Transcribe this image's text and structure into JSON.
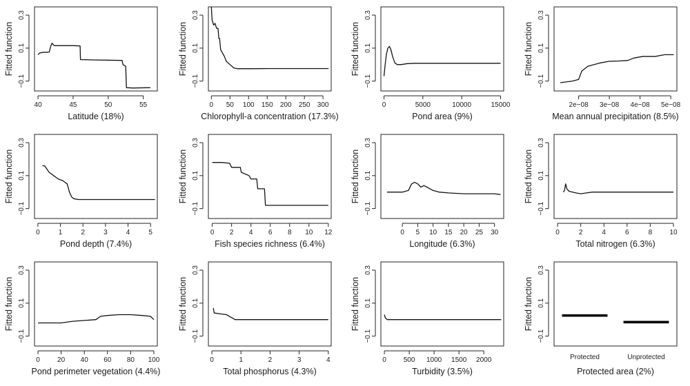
{
  "figure": {
    "ylabel": "Fitted function"
  },
  "colors": {
    "line": "#111111",
    "axis": "#222222",
    "background": "#ffffff"
  },
  "chart_data": [
    {
      "type": "line",
      "xlabel": "Latitude (18%)",
      "ylabel": "Fitted function",
      "xlim": [
        39.5,
        57
      ],
      "ylim": [
        -0.16,
        0.35
      ],
      "xticks": [
        40,
        45,
        50,
        55
      ],
      "xtick_labels": [
        "40",
        "45",
        "50",
        "55"
      ],
      "yticks": [
        -0.1,
        0.1,
        0.3
      ],
      "ytick_labels": [
        "−0.1",
        "0.1",
        "0.3"
      ],
      "x": [
        40,
        40.2,
        40.8,
        41.2,
        41.6,
        41.8,
        42.0,
        42.3,
        42.6,
        43.5,
        45.0,
        46.0,
        46.05,
        48.0,
        50.0,
        52.0,
        52.1,
        52.5,
        52.6,
        53.5,
        56.0
      ],
      "y": [
        0.06,
        0.07,
        0.075,
        0.075,
        0.076,
        0.11,
        0.13,
        0.115,
        0.115,
        0.115,
        0.115,
        0.113,
        0.03,
        0.028,
        0.027,
        0.025,
        0.0,
        -0.01,
        -0.14,
        -0.142,
        -0.14
      ]
    },
    {
      "type": "line",
      "xlabel": "Chlorophyll-a concentration (17.3%)",
      "ylabel": "Fitted function",
      "xlim": [
        -8,
        322
      ],
      "ylim": [
        -0.16,
        0.35
      ],
      "xticks": [
        0,
        50,
        100,
        150,
        200,
        250,
        300
      ],
      "xtick_labels": [
        "0",
        "50",
        "100",
        "150",
        "200",
        "250",
        "300"
      ],
      "yticks": [
        -0.1,
        0.1,
        0.3
      ],
      "ytick_labels": [
        "−0.1",
        "0.1",
        "0.3"
      ],
      "x": [
        0,
        2,
        6,
        10,
        14,
        18,
        20,
        22,
        25,
        30,
        35,
        40,
        50,
        60,
        70,
        80,
        100,
        150,
        200,
        250,
        300,
        315
      ],
      "y": [
        0.35,
        0.27,
        0.24,
        0.25,
        0.22,
        0.22,
        0.16,
        0.16,
        0.09,
        0.07,
        0.05,
        0.02,
        0.0,
        -0.02,
        -0.025,
        -0.025,
        -0.025,
        -0.024,
        -0.024,
        -0.024,
        -0.024,
        -0.024
      ]
    },
    {
      "type": "line",
      "xlabel": "Pond area (9%)",
      "ylabel": "Fitted function",
      "xlim": [
        -400,
        15400
      ],
      "ylim": [
        -0.16,
        0.35
      ],
      "xticks": [
        0,
        5000,
        10000,
        15000
      ],
      "xtick_labels": [
        "0",
        "5000",
        "10000",
        "15000"
      ],
      "yticks": [
        -0.1,
        0.1,
        0.3
      ],
      "ytick_labels": [
        "−0.1",
        "0.1",
        "0.3"
      ],
      "x": [
        0,
        150,
        300,
        500,
        700,
        900,
        1100,
        1400,
        1700,
        2200,
        3000,
        4000,
        8000,
        12000,
        15000
      ],
      "y": [
        -0.07,
        0.0,
        0.06,
        0.1,
        0.11,
        0.09,
        0.05,
        0.01,
        0.0,
        0.0,
        0.006,
        0.008,
        0.008,
        0.008,
        0.008
      ]
    },
    {
      "type": "line",
      "xlabel": "Mean annual precipitation (8.5%)",
      "ylabel": "Fitted function",
      "xlim": [
        1.2e-08,
        5.2e-08
      ],
      "ylim": [
        -0.16,
        0.35
      ],
      "xticks": [
        2e-08,
        3e-08,
        4e-08,
        5e-08
      ],
      "xtick_labels": [
        "2e−08",
        "3e−08",
        "4e−08",
        "5e−08"
      ],
      "yticks": [
        -0.1,
        0.1,
        0.3
      ],
      "ytick_labels": [
        "−0.1",
        "0.1",
        "0.3"
      ],
      "x": [
        1.4e-08,
        1.8e-08,
        2e-08,
        2.1e-08,
        2.3e-08,
        2.5e-08,
        2.7e-08,
        3e-08,
        3.3e-08,
        3.6e-08,
        3.8e-08,
        4.1e-08,
        4.5e-08,
        4.8e-08,
        5.1e-08
      ],
      "y": [
        -0.11,
        -0.1,
        -0.09,
        -0.04,
        -0.01,
        0.0,
        0.01,
        0.02,
        0.022,
        0.025,
        0.04,
        0.05,
        0.05,
        0.06,
        0.06
      ]
    },
    {
      "type": "line",
      "xlabel": "Pond depth (7.4%)",
      "ylabel": "Fitted function",
      "xlim": [
        -0.15,
        5.3
      ],
      "ylim": [
        -0.16,
        0.35
      ],
      "xticks": [
        0,
        1,
        2,
        3,
        4,
        5
      ],
      "xtick_labels": [
        "0",
        "1",
        "2",
        "3",
        "4",
        "5"
      ],
      "yticks": [
        -0.1,
        0.1,
        0.3
      ],
      "ytick_labels": [
        "−0.1",
        "0.1",
        "0.3"
      ],
      "x": [
        0.2,
        0.3,
        0.5,
        0.7,
        0.9,
        1.1,
        1.3,
        1.4,
        1.5,
        1.6,
        1.8,
        2.5,
        3.5,
        4.5,
        5.2
      ],
      "y": [
        0.16,
        0.16,
        0.12,
        0.1,
        0.08,
        0.07,
        0.05,
        0.0,
        -0.03,
        -0.04,
        -0.045,
        -0.045,
        -0.045,
        -0.045,
        -0.045
      ]
    },
    {
      "type": "line",
      "xlabel": "Fish species richness (6.4%)",
      "ylabel": "Fitted function",
      "xlim": [
        -0.4,
        12.3
      ],
      "ylim": [
        -0.16,
        0.35
      ],
      "xticks": [
        0,
        2,
        4,
        6,
        8,
        10,
        12
      ],
      "xtick_labels": [
        "0",
        "2",
        "4",
        "6",
        "8",
        "10",
        "12"
      ],
      "yticks": [
        -0.1,
        0.1,
        0.3
      ],
      "ytick_labels": [
        "−0.1",
        "0.1",
        "0.3"
      ],
      "x": [
        0,
        1,
        1.8,
        2,
        2.9,
        3,
        3.8,
        4,
        4.6,
        4.7,
        5.4,
        5.5,
        8,
        10,
        12
      ],
      "y": [
        0.18,
        0.18,
        0.175,
        0.15,
        0.15,
        0.12,
        0.1,
        0.08,
        0.08,
        0.02,
        0.02,
        -0.08,
        -0.08,
        -0.08,
        -0.08
      ]
    },
    {
      "type": "line",
      "xlabel": "Longitude (6.3%)",
      "ylabel": "Fitted function",
      "xlim": [
        -7,
        33
      ],
      "ylim": [
        -0.16,
        0.35
      ],
      "xticks": [
        0,
        5,
        10,
        15,
        20,
        25,
        30
      ],
      "xtick_labels": [
        "0",
        "5",
        "10",
        "15",
        "20",
        "25",
        "30"
      ],
      "yticks": [
        -0.1,
        0.1,
        0.3
      ],
      "ytick_labels": [
        "−0.1",
        "0.1",
        "0.3"
      ],
      "x": [
        -5,
        0,
        2,
        3,
        4,
        5,
        6,
        7,
        8,
        9,
        10,
        12,
        15,
        20,
        25,
        30,
        32
      ],
      "y": [
        0.0,
        0.0,
        0.01,
        0.05,
        0.06,
        0.05,
        0.03,
        0.04,
        0.03,
        0.02,
        0.01,
        0.0,
        -0.005,
        -0.01,
        -0.01,
        -0.01,
        -0.015
      ]
    },
    {
      "type": "line",
      "xlabel": "Total nitrogen (6.3%)",
      "ylabel": "Fitted function",
      "xlim": [
        -0.3,
        10.3
      ],
      "ylim": [
        -0.16,
        0.35
      ],
      "xticks": [
        0,
        2,
        4,
        6,
        8,
        10
      ],
      "xtick_labels": [
        "0",
        "2",
        "4",
        "6",
        "8",
        "10"
      ],
      "yticks": [
        -0.1,
        0.1,
        0.3
      ],
      "ytick_labels": [
        "−0.1",
        "0.1",
        "0.3"
      ],
      "x": [
        0.5,
        0.6,
        0.7,
        0.8,
        1.0,
        1.3,
        1.6,
        2.0,
        2.5,
        3.0,
        5.0,
        7.0,
        10.0
      ],
      "y": [
        0.0,
        0.01,
        0.05,
        0.02,
        0.005,
        0.0,
        -0.005,
        -0.01,
        -0.005,
        0.0,
        0.0,
        0.0,
        0.0
      ]
    },
    {
      "type": "line",
      "xlabel": "Pond perimeter vegetation (4.4%)",
      "ylabel": "Fitted function",
      "xlim": [
        -3,
        103
      ],
      "ylim": [
        -0.16,
        0.35
      ],
      "xticks": [
        0,
        20,
        40,
        60,
        80,
        100
      ],
      "xtick_labels": [
        "0",
        "20",
        "40",
        "60",
        "80",
        "100"
      ],
      "yticks": [
        -0.1,
        0.1,
        0.3
      ],
      "ytick_labels": [
        "−0.1",
        "0.1",
        "0.3"
      ],
      "x": [
        0,
        10,
        20,
        30,
        40,
        50,
        54,
        60,
        70,
        80,
        90,
        97,
        100
      ],
      "y": [
        -0.02,
        -0.02,
        -0.02,
        -0.01,
        -0.005,
        0.0,
        0.02,
        0.025,
        0.03,
        0.03,
        0.025,
        0.02,
        0.0
      ]
    },
    {
      "type": "line",
      "xlabel": "Total phosphorus (4.3%)",
      "ylabel": "Fitted function",
      "xlim": [
        -0.12,
        4.1
      ],
      "ylim": [
        -0.16,
        0.35
      ],
      "xticks": [
        0,
        1,
        2,
        3,
        4
      ],
      "xtick_labels": [
        "0",
        "1",
        "2",
        "3",
        "4"
      ],
      "yticks": [
        -0.1,
        0.1,
        0.3
      ],
      "ytick_labels": [
        "−0.1",
        "0.1",
        "0.3"
      ],
      "x": [
        0.05,
        0.08,
        0.1,
        0.3,
        0.5,
        0.6,
        0.7,
        0.8,
        1.0,
        2.0,
        3.0,
        4.0
      ],
      "y": [
        0.07,
        0.04,
        0.04,
        0.035,
        0.03,
        0.02,
        0.01,
        0.0,
        0.0,
        0.0,
        0.0,
        0.0
      ]
    },
    {
      "type": "line",
      "xlabel": "Turbidity (3.5%)",
      "ylabel": "Fitted function",
      "xlim": [
        -70,
        2400
      ],
      "ylim": [
        -0.16,
        0.35
      ],
      "xticks": [
        0,
        500,
        1000,
        1500,
        2000
      ],
      "xtick_labels": [
        "0",
        "500",
        "1000",
        "1500",
        "2000"
      ],
      "yticks": [
        -0.1,
        0.1,
        0.3
      ],
      "ytick_labels": [
        "−0.1",
        "0.1",
        "0.3"
      ],
      "x": [
        0,
        20,
        60,
        200,
        1000,
        2000,
        2350
      ],
      "y": [
        0.03,
        0.01,
        0.0,
        0.0,
        0.0,
        0.0,
        0.0
      ]
    },
    {
      "type": "bar",
      "xlabel": "Protected area (2%)",
      "ylabel": "Fitted function",
      "ylim": [
        -0.16,
        0.35
      ],
      "categories": [
        "Protected",
        "Unprotected"
      ],
      "values": [
        0.025,
        -0.015
      ],
      "yticks": [
        -0.1,
        0.1,
        0.3
      ],
      "ytick_labels": [
        "−0.1",
        "0.1",
        "0.3"
      ]
    }
  ]
}
